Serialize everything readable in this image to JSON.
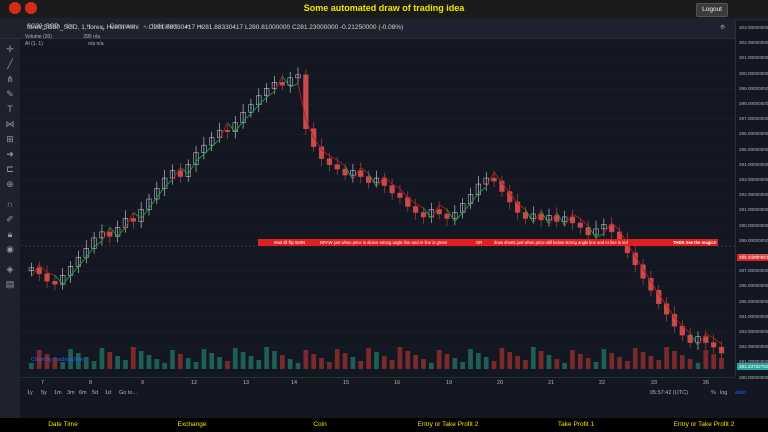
{
  "app": {
    "title": "Some automated draw of trading idea",
    "logout_label": "Logout"
  },
  "toolbar": {
    "symbol": "SG30_SGD",
    "interval": "1m",
    "compare_label": "Compare",
    "indicators_label": "Indicators"
  },
  "legend": {
    "main": "forex:SG30_SGD, 1, forex, Heikin Ashi",
    "ohlc": "O281.88330417  H281.88330417  L280.81000000  C281.23000000  -0.21250000 (-0.08%)",
    "volume": "Volume (20)",
    "volume_value": "295  n/a",
    "ai": "AI (1, 1)",
    "ai_value": "n/a  n/a"
  },
  "banner": {
    "part1": "Wait till flip 5MIN",
    "part2": "DRAW just when price is above strong angle line and AI line is green",
    "part3": "OR",
    "part4": "draw shorts just when price still below strong angle line and AI line is red",
    "part5": "THEN See the magic!!"
  },
  "price_axis": {
    "labels": [
      "303.00000000",
      "302.00000000",
      "301.00000000",
      "300.00000000",
      "299.00000000",
      "298.00000000",
      "297.00000000",
      "296.00000000",
      "295.00000000",
      "294.00000000",
      "293.00000000",
      "292.00000000",
      "291.00000000",
      "290.00000000",
      "289.00000000",
      "288.00000000",
      "287.00000000",
      "286.00000000",
      "285.00000000",
      "284.00000000",
      "283.00000000",
      "282.00000000",
      "281.00000000",
      "280.00000000"
    ],
    "current": "281.23782750",
    "marker": "288.34990691"
  },
  "time_axis": {
    "labels": [
      "7",
      "8",
      "9",
      "12",
      "13",
      "14",
      "15",
      "16",
      "19",
      "20",
      "21",
      "22",
      "23",
      "26"
    ]
  },
  "bottom_bar": {
    "ranges": [
      "1y",
      "5y",
      "1m",
      "3m",
      "6m",
      "5d",
      "1d"
    ],
    "goto": "Go to...",
    "clock": "05:57:42 (UTC)",
    "percent": "%",
    "log": "log",
    "auto": "auto"
  },
  "watermark": "Chart by TradingView",
  "columns": [
    "Date Time",
    "Exchange",
    "Coin",
    "Entry or Take Profit 2",
    "Take Profit 1",
    "Entry or Take Profit 2"
  ],
  "colors": {
    "accent_yellow": "#f5e400",
    "up": "#26a69a",
    "down": "#ef5350",
    "banner_red": "#e02020",
    "background": "#131722"
  },
  "chart_data": {
    "type": "candlestick",
    "symbol": "forex:SG30_SGD",
    "ylim": [
      280,
      303
    ],
    "close": [
      286.9,
      286.5,
      286.0,
      285.8,
      286.4,
      287.0,
      287.6,
      288.2,
      288.9,
      289.3,
      289.0,
      289.6,
      290.2,
      290.0,
      290.8,
      291.5,
      292.2,
      292.9,
      293.4,
      293.0,
      293.8,
      294.6,
      295.1,
      295.6,
      296.1,
      296.0,
      296.6,
      297.3,
      297.8,
      298.4,
      298.9,
      299.3,
      299.1,
      299.6,
      299.8,
      296.2,
      295.0,
      294.2,
      293.8,
      293.5,
      293.1,
      293.4,
      293.0,
      292.6,
      292.9,
      292.4,
      291.9,
      291.6,
      291.0,
      290.6,
      290.3,
      290.8,
      290.5,
      290.2,
      290.6,
      291.2,
      291.8,
      292.5,
      292.9,
      292.7,
      292.0,
      291.3,
      290.6,
      290.2,
      290.5,
      290.1,
      290.4,
      290.0,
      290.3,
      289.9,
      289.6,
      289.1,
      289.5,
      289.8,
      289.3,
      288.8,
      287.9,
      287.1,
      286.2,
      285.4,
      284.5,
      283.8,
      283.0,
      282.4,
      281.9,
      282.3,
      281.9,
      281.6,
      281.2
    ]
  }
}
